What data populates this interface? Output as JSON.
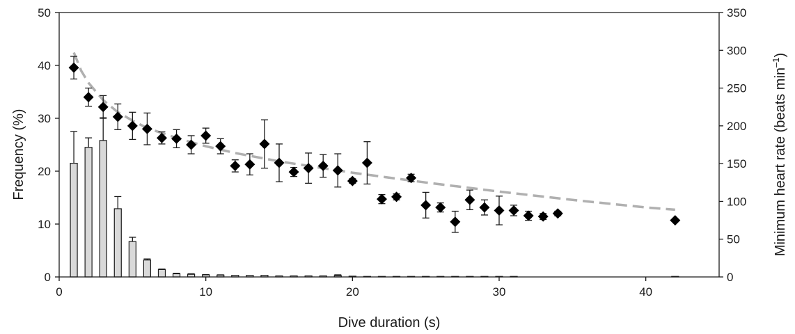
{
  "chart_data": {
    "type": "bar+scatter",
    "xlabel": "Dive duration (s)",
    "ylabel_left": "Frequency (%)",
    "ylabel_right": {
      "main": "Minimum heart rate (beats min",
      "sup": "–1",
      "close": ")"
    },
    "xlim": [
      0,
      45
    ],
    "ylim_left": [
      0,
      50
    ],
    "ylim_right": [
      0,
      350
    ],
    "x_ticks": [
      0,
      10,
      20,
      30,
      40
    ],
    "y_left_ticks": [
      0,
      10,
      20,
      30,
      40,
      50
    ],
    "y_right_ticks": [
      0,
      50,
      100,
      150,
      200,
      250,
      300,
      350
    ],
    "grid": false,
    "frequency_bars": {
      "axis": "left",
      "x": [
        1,
        2,
        3,
        4,
        5,
        6,
        7,
        8,
        9,
        10,
        11,
        12,
        13,
        14,
        15,
        16,
        17,
        18,
        19,
        20,
        21,
        22,
        23,
        24,
        25,
        26,
        27,
        28,
        29,
        30,
        31,
        42
      ],
      "values": [
        21.5,
        24.5,
        25.8,
        12.9,
        6.7,
        3.2,
        1.4,
        0.6,
        0.5,
        0.4,
        0.35,
        0.3,
        0.3,
        0.3,
        0.2,
        0.2,
        0.2,
        0.2,
        0.25,
        0.15,
        0.1,
        0.1,
        0.1,
        0.1,
        0.1,
        0.1,
        0.1,
        0.1,
        0.1,
        0.1,
        0.1,
        0.1
      ],
      "error": [
        6.0,
        1.8,
        4.3,
        2.3,
        0.8,
        0.2,
        0.1,
        0.1,
        0.1,
        0.05,
        0.05,
        0,
        0,
        0,
        0,
        0,
        0,
        0,
        0.15,
        0,
        0,
        0,
        0,
        0,
        0,
        0,
        0,
        0,
        0,
        0,
        0,
        0
      ]
    },
    "heart_rate": {
      "axis": "right",
      "x": [
        1,
        2,
        3,
        4,
        5,
        6,
        7,
        8,
        9,
        10,
        11,
        12,
        13,
        14,
        15,
        16,
        17,
        18,
        19,
        20,
        21,
        22,
        23,
        24,
        25,
        26,
        27,
        28,
        29,
        30,
        31,
        32,
        33,
        34,
        42
      ],
      "values": [
        277,
        238,
        225,
        212,
        200,
        196,
        184,
        183,
        175,
        187,
        173,
        147,
        149,
        176,
        151,
        139,
        144,
        147,
        141,
        127,
        151,
        103,
        106,
        131,
        95,
        92,
        73,
        102,
        92,
        88,
        88,
        81,
        80,
        84,
        75
      ],
      "error": [
        15,
        12,
        15,
        17,
        18,
        21,
        8,
        12,
        12,
        10,
        10,
        8,
        14,
        32,
        25,
        6,
        20,
        15,
        22,
        3,
        28,
        6,
        4,
        5,
        17,
        6,
        14,
        13,
        10,
        19,
        7,
        6,
        4,
        3,
        0
      ]
    },
    "fit_curve": {
      "axis": "right",
      "x": [
        1,
        1.5,
        2,
        3,
        4,
        5,
        6,
        8,
        10,
        12,
        15,
        18,
        20,
        25,
        30,
        35,
        40,
        42
      ],
      "values": [
        297,
        273,
        257,
        234,
        218,
        207,
        197,
        184,
        173,
        164,
        153,
        144,
        138,
        125,
        113,
        102,
        92,
        89
      ]
    }
  }
}
